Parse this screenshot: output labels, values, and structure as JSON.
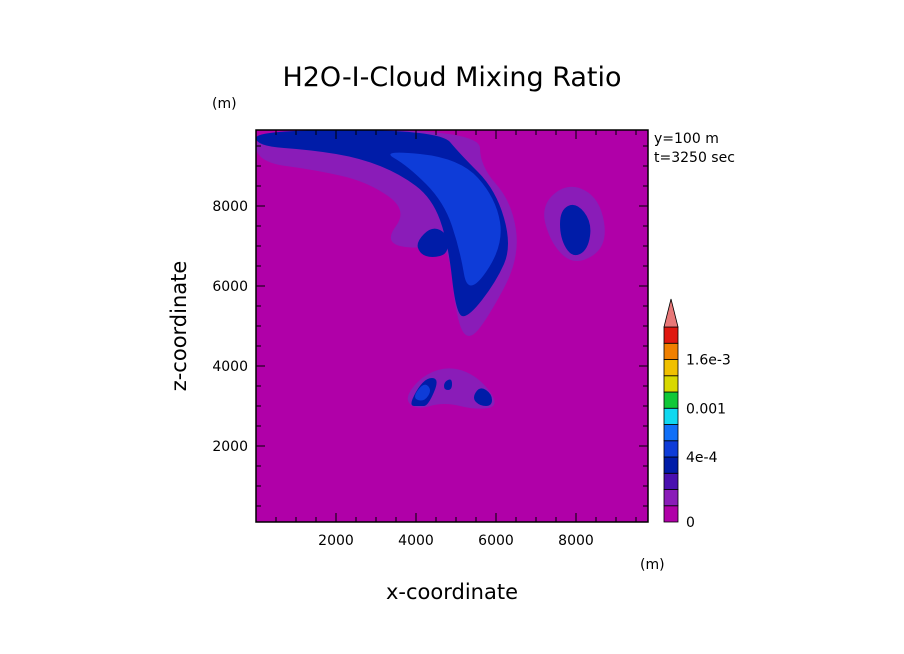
{
  "chart_data": {
    "type": "filled-contour",
    "title": "H2O-I-Cloud Mixing Ratio",
    "xlabel": "x-coordinate",
    "ylabel": "z-coordinate",
    "x_unit": "(m)",
    "y_unit": "(m)",
    "xlim": [
      0,
      9800
    ],
    "ylim": [
      100,
      9900
    ],
    "xticks": [
      2000,
      4000,
      6000,
      8000
    ],
    "yticks": [
      2000,
      4000,
      6000,
      8000
    ],
    "xtick_labels": [
      "2000",
      "4000",
      "6000",
      "8000"
    ],
    "ytick_labels": [
      "2000",
      "4000",
      "6000",
      "8000"
    ],
    "annotations": [
      "y=100 m",
      "t=3250 sec"
    ],
    "colorbar": {
      "levels": [
        0,
        0.0001,
        0.0002,
        0.0003,
        0.0004,
        0.0006,
        0.0008,
        0.001,
        0.0012,
        0.0014,
        0.0016,
        0.0018,
        0.002
      ],
      "colors": [
        "#b000a8",
        "#8a1cb8",
        "#4a10b0",
        "#001ca8",
        "#0e3cd8",
        "#1070f8",
        "#10d8f0",
        "#10c838",
        "#d8d800",
        "#f0c000",
        "#f08000",
        "#e01810",
        "#e87878"
      ],
      "extend": "max",
      "tick_values": [
        0,
        0.0004,
        0.001,
        0.0016
      ],
      "tick_labels": [
        "0",
        "4e-4",
        "0.001",
        "1.6e-3"
      ]
    },
    "regions": [
      {
        "level": 1,
        "color": "#8a1cb8",
        "points": [
          [
            0,
            9900
          ],
          [
            0,
            9100
          ],
          [
            1500,
            8900
          ],
          [
            2800,
            8600
          ],
          [
            3800,
            7900
          ],
          [
            3200,
            7100
          ],
          [
            4000,
            6900
          ],
          [
            4800,
            7200
          ],
          [
            5000,
            5200
          ],
          [
            5300,
            4600
          ],
          [
            5800,
            5200
          ],
          [
            6600,
            6700
          ],
          [
            6400,
            8100
          ],
          [
            5600,
            9000
          ],
          [
            5600,
            9900
          ]
        ]
      },
      {
        "level": 1,
        "color": "#8a1cb8",
        "points": [
          [
            7100,
            8000
          ],
          [
            7800,
            8600
          ],
          [
            8600,
            8200
          ],
          [
            8800,
            7000
          ],
          [
            8000,
            6500
          ],
          [
            7400,
            7000
          ]
        ]
      },
      {
        "level": 1,
        "color": "#8a1cb8",
        "points": [
          [
            3700,
            3200
          ],
          [
            4200,
            3800
          ],
          [
            4900,
            4000
          ],
          [
            5600,
            3700
          ],
          [
            6100,
            3000
          ],
          [
            5500,
            2900
          ],
          [
            4700,
            3100
          ],
          [
            4000,
            2900
          ]
        ]
      },
      {
        "level": 3,
        "color": "#001ca8",
        "points": [
          [
            0,
            9900
          ],
          [
            0,
            9500
          ],
          [
            1400,
            9400
          ],
          [
            2600,
            9200
          ],
          [
            3600,
            8800
          ],
          [
            4400,
            8200
          ],
          [
            4800,
            7100
          ],
          [
            5000,
            5300
          ],
          [
            5300,
            5200
          ],
          [
            6000,
            6100
          ],
          [
            6400,
            7000
          ],
          [
            6000,
            8400
          ],
          [
            5100,
            9300
          ],
          [
            4600,
            9900
          ]
        ]
      },
      {
        "level": 3,
        "color": "#001ca8",
        "points": [
          [
            7600,
            7900
          ],
          [
            8000,
            8100
          ],
          [
            8400,
            7600
          ],
          [
            8300,
            6900
          ],
          [
            7900,
            6700
          ],
          [
            7600,
            7200
          ]
        ]
      },
      {
        "level": 3,
        "color": "#001ca8",
        "points": [
          [
            4000,
            7100
          ],
          [
            4400,
            7500
          ],
          [
            4800,
            7300
          ],
          [
            4800,
            6800
          ],
          [
            4400,
            6700
          ],
          [
            4100,
            6800
          ]
        ]
      },
      {
        "level": 3,
        "color": "#001ca8",
        "points": [
          [
            3800,
            3000
          ],
          [
            4200,
            3700
          ],
          [
            4600,
            3700
          ],
          [
            4300,
            3000
          ],
          [
            4100,
            3000
          ]
        ]
      },
      {
        "level": 3,
        "color": "#001ca8",
        "points": [
          [
            4700,
            3600
          ],
          [
            4900,
            3700
          ],
          [
            4900,
            3400
          ],
          [
            4700,
            3400
          ]
        ]
      },
      {
        "level": 3,
        "color": "#001ca8",
        "points": [
          [
            5400,
            3200
          ],
          [
            5600,
            3500
          ],
          [
            5900,
            3300
          ],
          [
            5900,
            3000
          ],
          [
            5600,
            3000
          ]
        ]
      },
      {
        "level": 4,
        "color": "#0e3cd8",
        "points": [
          [
            3100,
            9400
          ],
          [
            3800,
            9000
          ],
          [
            4700,
            8100
          ],
          [
            5100,
            6900
          ],
          [
            5300,
            5700
          ],
          [
            6200,
            7000
          ],
          [
            6000,
            8200
          ],
          [
            5100,
            9200
          ]
        ]
      },
      {
        "level": 4,
        "color": "#0e3cd8",
        "points": [
          [
            3900,
            3200
          ],
          [
            4200,
            3600
          ],
          [
            4400,
            3400
          ],
          [
            4200,
            3100
          ]
        ]
      }
    ]
  }
}
